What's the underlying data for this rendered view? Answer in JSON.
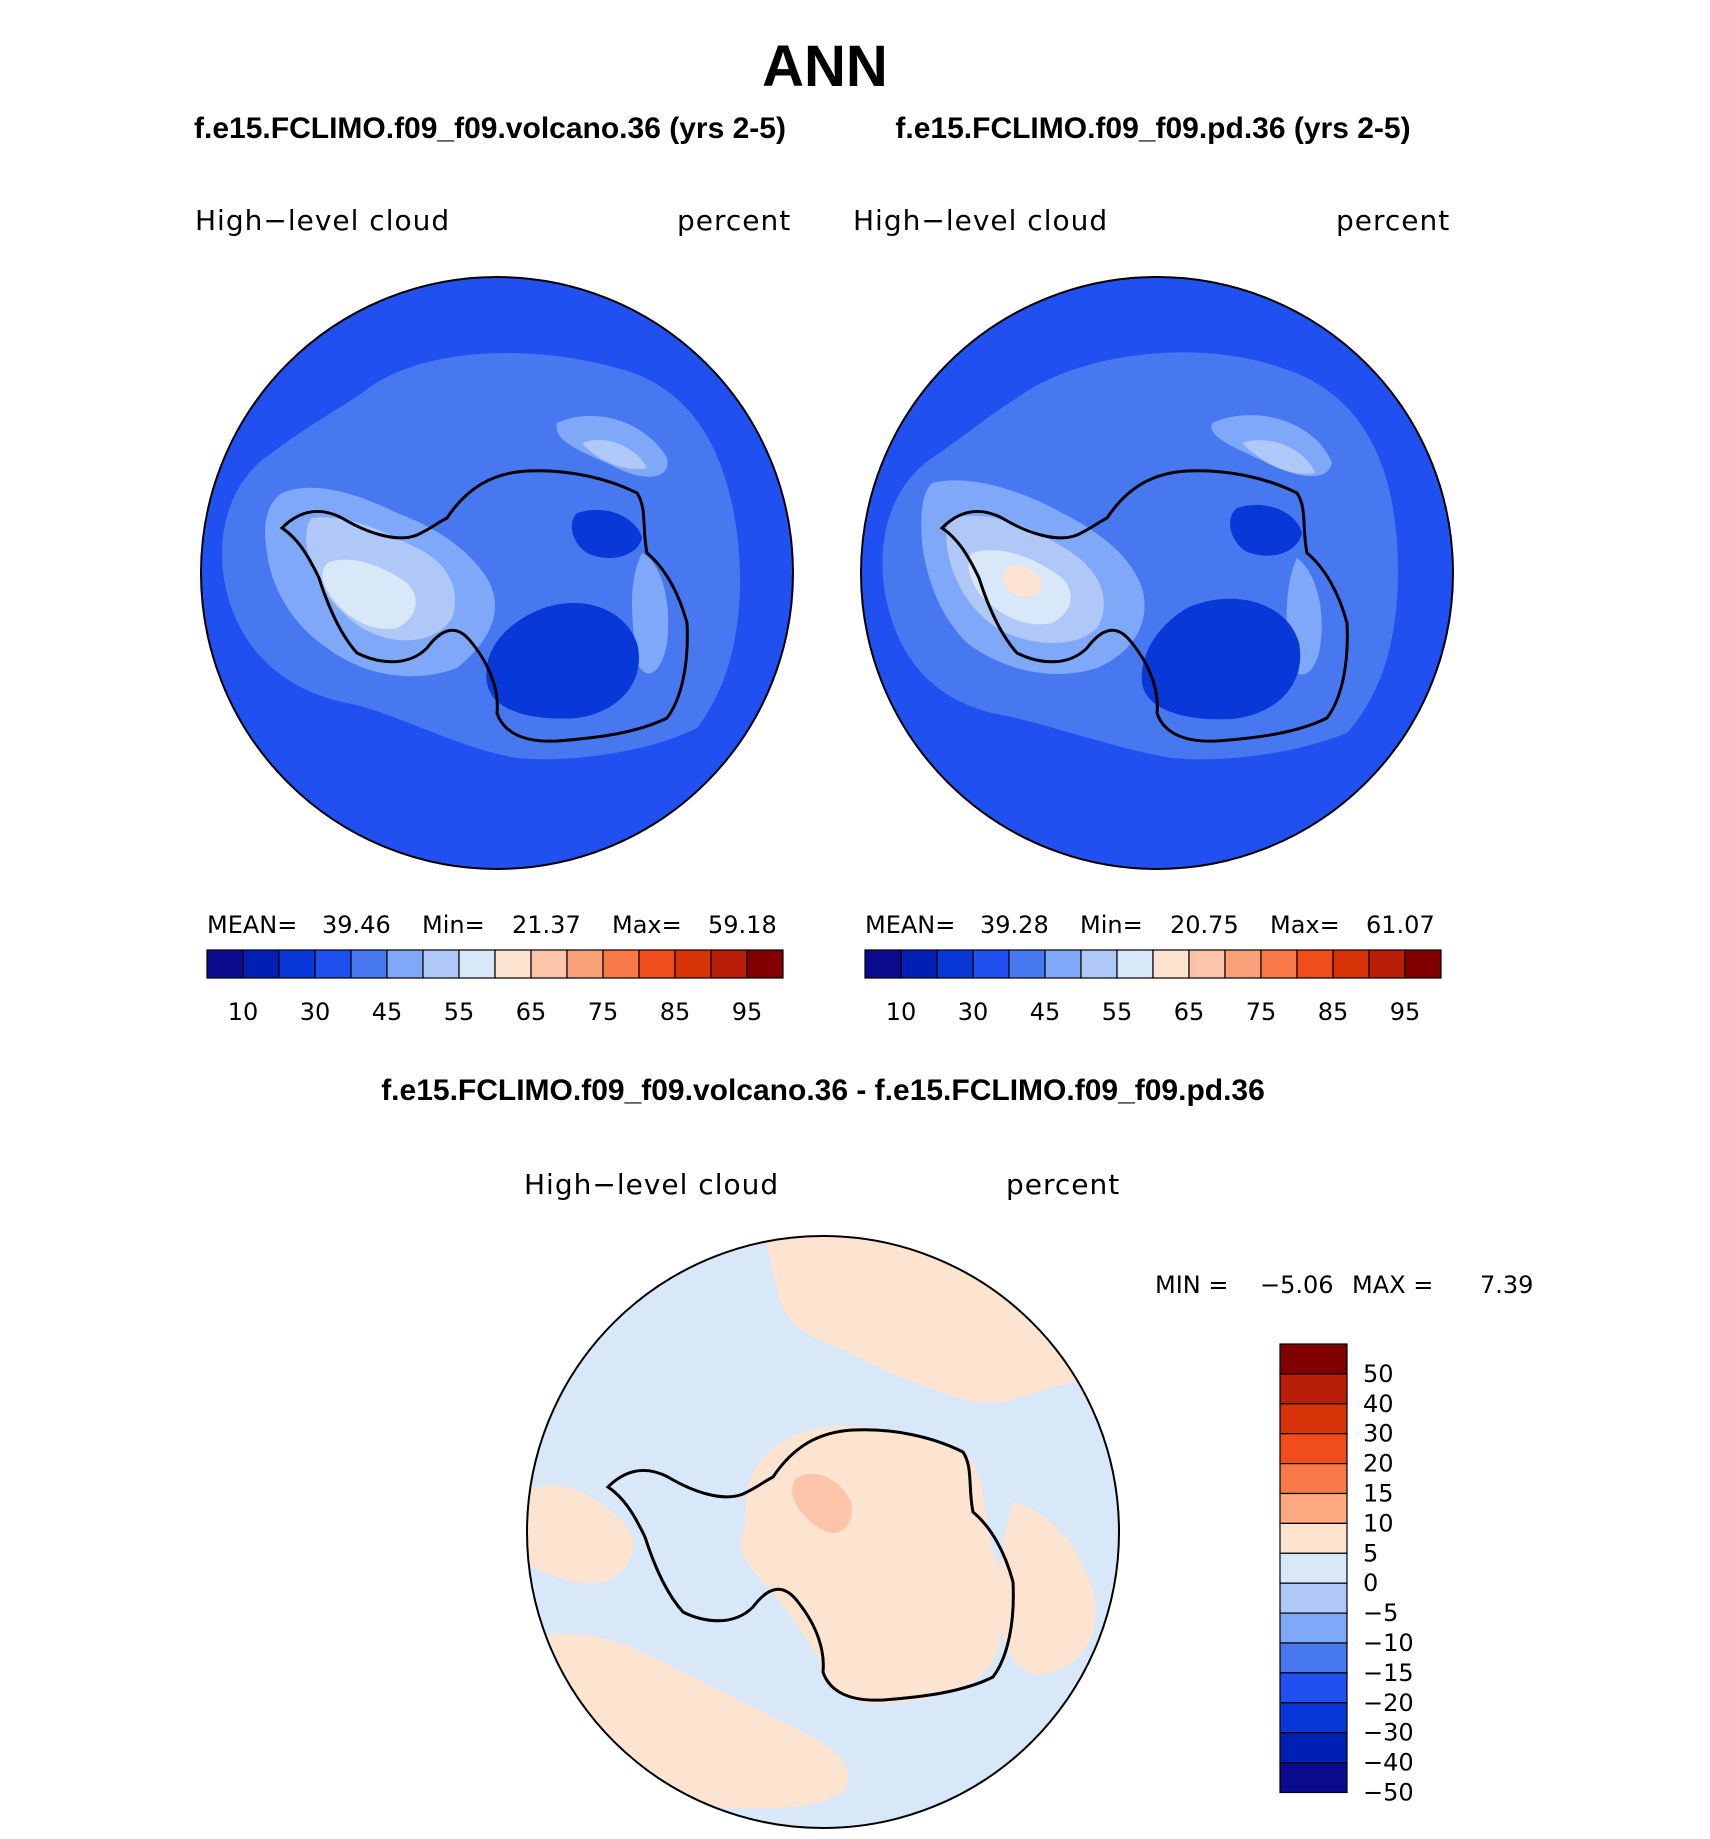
{
  "main_title": "ANN",
  "panels": [
    {
      "title": "f.e15.FCLIMO.f09_f09.volcano.36 (yrs 2-5)",
      "variable": "High−level cloud",
      "units": "percent",
      "stats": {
        "mean_label": "MEAN=",
        "mean": "39.46",
        "min_label": "Min=",
        "min": "21.37",
        "max_label": "Max=",
        "max": "59.18"
      }
    },
    {
      "title": "f.e15.FCLIMO.f09_f09.pd.36 (yrs 2-5)",
      "variable": "High−level cloud",
      "units": "percent",
      "stats": {
        "mean_label": "MEAN=",
        "mean": "39.28",
        "min_label": "Min=",
        "min": "20.75",
        "max_label": "Max=",
        "max": "61.07"
      }
    }
  ],
  "diff_panel": {
    "title": "f.e15.FCLIMO.f09_f09.volcano.36 - f.e15.FCLIMO.f09_f09.pd.36",
    "variable": "High−level cloud",
    "units": "percent",
    "stats": {
      "min_label": "MIN =",
      "min": "−5.06",
      "max_label": "MAX =",
      "max": "7.39"
    }
  },
  "colorbar_h": {
    "colors": [
      "#0a0a8c",
      "#0020b4",
      "#0838d8",
      "#2050f0",
      "#4878f0",
      "#80a8f8",
      "#b0c8f8",
      "#d8e8f8",
      "#fde4d0",
      "#fcc4a8",
      "#f8a078",
      "#f87848",
      "#f04c1c",
      "#d83208",
      "#b81e08",
      "#800000"
    ],
    "tick_labels": [
      "10",
      "30",
      "45",
      "55",
      "65",
      "75",
      "85",
      "95"
    ]
  },
  "colorbar_v": {
    "colors": [
      "#800000",
      "#b81e08",
      "#d83208",
      "#f04c1c",
      "#f87848",
      "#fca880",
      "#fde4d0",
      "#d8e8f8",
      "#b0c8f8",
      "#80a8f8",
      "#4878f0",
      "#2050f0",
      "#0838d8",
      "#0020b4",
      "#0a0a8c"
    ],
    "tick_labels": [
      "50",
      "40",
      "30",
      "20",
      "15",
      "10",
      "5",
      "0",
      "−5",
      "−10",
      "−15",
      "−20",
      "−30",
      "−40",
      "−50"
    ]
  },
  "map_colors": {
    "ocean_base": "#2050f0",
    "level_45": "#4878f0",
    "level_55": "#80a8f8",
    "level_65": "#b0c8f8",
    "level_75": "#d8e8f8",
    "low_30": "#0838d8",
    "diff_neg": "#d8e8f8",
    "diff_pos": "#fde4d0",
    "diff_pos_strong": "#fcc4a8",
    "coast": "#000000"
  }
}
